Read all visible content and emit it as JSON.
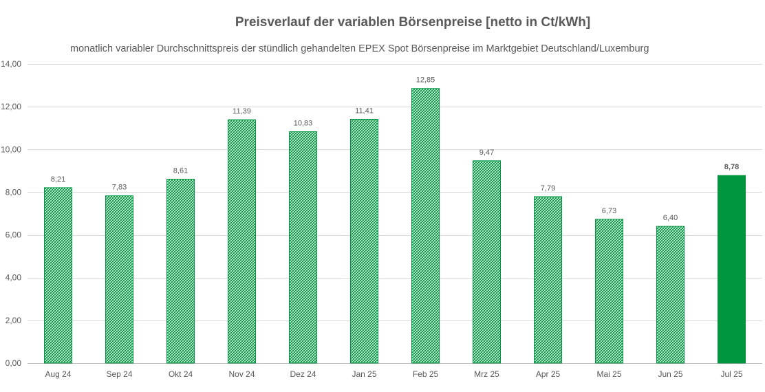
{
  "chart_data": {
    "type": "bar",
    "title": "Preisverlauf der variablen Börsenpreise [netto in Ct/kWh]",
    "subtitle": "monatlich variabler Durchschnittspreis der stündlich gehandelten EPEX Spot Börsenpreise im Marktgebiet Deutschland/Luxemburg",
    "categories": [
      "Aug 24",
      "Sep 24",
      "Okt 24",
      "Nov 24",
      "Dez 24",
      "Jan 25",
      "Feb 25",
      "Mrz 25",
      "Apr 25",
      "Mai 25",
      "Jun 25",
      "Jul 25"
    ],
    "values": [
      8.21,
      7.83,
      8.61,
      11.39,
      10.83,
      11.41,
      12.85,
      9.47,
      7.79,
      6.73,
      6.4,
      8.78
    ],
    "value_labels": [
      "8,21",
      "7,83",
      "8,61",
      "11,39",
      "10,83",
      "11,41",
      "12,85",
      "9,47",
      "7,79",
      "6,73",
      "6,40",
      "8,78"
    ],
    "highlight_index": 11,
    "ylim": [
      0,
      14
    ],
    "yticks": [
      0,
      2,
      4,
      6,
      8,
      10,
      12,
      14
    ],
    "ytick_labels": [
      "0,00",
      "2,00",
      "4,00",
      "6,00",
      "8,00",
      "10,00",
      "12,00",
      "14,00"
    ],
    "xlabel": "",
    "ylabel": "",
    "grid": true,
    "colors": {
      "bar_pattern": "#00963f",
      "bar_highlight": "#00963f",
      "grid": "#d9d9d9",
      "text": "#595959"
    }
  }
}
